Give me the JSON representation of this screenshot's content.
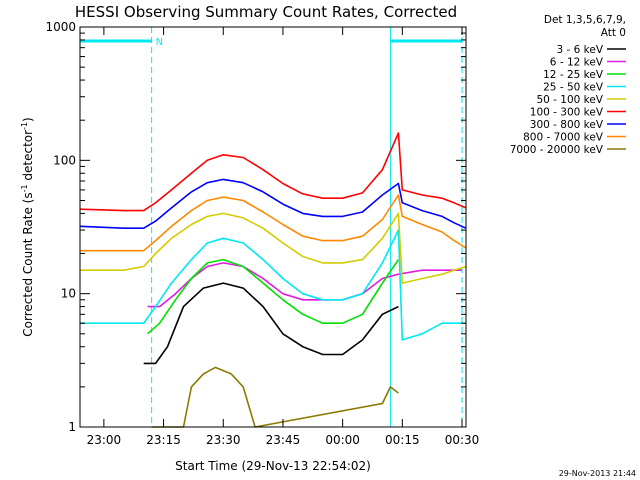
{
  "chart_data": {
    "type": "line",
    "title": "HESSI Observing Summary Count Rates, Corrected",
    "xlabel": "Start Time (29-Nov-13 22:54:02)",
    "ylabel_main": "Corrected Count Rate (s",
    "ylabel_sup1": "-1",
    "ylabel_mid": " detector",
    "ylabel_sup2": "-1",
    "ylabel_end": ")",
    "y_scale": "log",
    "ylim": [
      1,
      1000
    ],
    "xlim": [
      "22:54",
      "00:31"
    ],
    "x_ticks": [
      "23:00",
      "23:15",
      "23:30",
      "23:45",
      "00:00",
      "00:15",
      "00:30"
    ],
    "y_ticks": [
      "1",
      "10",
      "100",
      "1000"
    ],
    "grid": false,
    "legend": {
      "placement": "right",
      "header_line1": "Det 1,3,5,6,7,9,",
      "header_line2": "Att 0",
      "entries": [
        {
          "label": "3 - 6 keV",
          "color": "#000000"
        },
        {
          "label": "6 - 12 keV",
          "color": "#e01be0"
        },
        {
          "label": "12 - 25 keV",
          "color": "#00e000"
        },
        {
          "label": "25 - 50 keV",
          "color": "#00e8f0"
        },
        {
          "label": "50 - 100 keV",
          "color": "#d4cc00"
        },
        {
          "label": "100 - 300 keV",
          "color": "#ff0000"
        },
        {
          "label": "300 - 800 keV",
          "color": "#0000ff"
        },
        {
          "label": "800 - 7000 keV",
          "color": "#ff8800"
        },
        {
          "label": "7000 - 20000 keV",
          "color": "#8a7a00"
        }
      ]
    },
    "annotations": {
      "n_marker": "N",
      "night_periods": [
        [
          "22:54",
          "23:12"
        ],
        [
          "00:12",
          "00:30"
        ]
      ],
      "night_color": "#00e8f0"
    },
    "series": [
      {
        "name": "3 - 6 keV",
        "color": "#000000",
        "x": [
          "23:10",
          "23:13",
          "23:16",
          "23:20",
          "23:25",
          "23:30",
          "23:35",
          "23:40",
          "23:45",
          "23:50",
          "23:55",
          "00:00",
          "00:05",
          "00:10",
          "00:14"
        ],
        "y": [
          3,
          3,
          4,
          8,
          11,
          12,
          11,
          8,
          5,
          4,
          3.5,
          3.5,
          4.5,
          7,
          8
        ]
      },
      {
        "name": "6 - 12 keV",
        "color": "#e01be0",
        "x": [
          "23:11",
          "23:14",
          "23:18",
          "23:22",
          "23:26",
          "23:30",
          "23:35",
          "23:40",
          "23:45",
          "23:50",
          "23:55",
          "00:00",
          "00:05",
          "00:10",
          "00:14",
          "00:20",
          "00:30"
        ],
        "y": [
          8,
          8,
          10,
          13,
          16,
          17,
          16,
          13,
          10,
          9,
          9,
          9,
          10,
          13,
          14,
          15,
          15
        ]
      },
      {
        "name": "12 - 25 keV",
        "color": "#00e000",
        "x": [
          "23:11",
          "23:14",
          "23:18",
          "23:22",
          "23:26",
          "23:30",
          "23:35",
          "23:40",
          "23:45",
          "23:50",
          "23:55",
          "00:00",
          "00:05",
          "00:10",
          "00:14"
        ],
        "y": [
          5,
          6,
          9,
          13,
          17,
          18,
          16,
          12,
          9,
          7,
          6,
          6,
          7,
          12,
          18
        ]
      },
      {
        "name": "25 - 50 keV",
        "color": "#00e8f0",
        "x": [
          "22:54",
          "23:05",
          "23:10",
          "23:13",
          "23:17",
          "23:22",
          "23:26",
          "23:30",
          "23:35",
          "23:40",
          "23:45",
          "23:50",
          "23:55",
          "00:00",
          "00:05",
          "00:10",
          "00:14",
          "00:15",
          "00:20",
          "00:25",
          "00:28",
          "00:31"
        ],
        "y": [
          6,
          6,
          6,
          8,
          12,
          18,
          24,
          26,
          24,
          18,
          13,
          10,
          9,
          9,
          10,
          17,
          30,
          4.5,
          5,
          6,
          6,
          6
        ]
      },
      {
        "name": "50 - 100 keV",
        "color": "#d4cc00",
        "x": [
          "22:54",
          "23:05",
          "23:10",
          "23:13",
          "23:17",
          "23:22",
          "23:26",
          "23:30",
          "23:35",
          "23:40",
          "23:45",
          "23:50",
          "23:55",
          "00:00",
          "00:05",
          "00:10",
          "00:14",
          "00:15",
          "00:20",
          "00:25",
          "00:28",
          "00:31"
        ],
        "y": [
          15,
          15,
          16,
          20,
          26,
          33,
          38,
          40,
          37,
          31,
          24,
          19,
          17,
          17,
          18,
          26,
          40,
          12,
          13,
          14,
          15,
          16
        ]
      },
      {
        "name": "100 - 300 keV",
        "color": "#ff0000",
        "x": [
          "22:54",
          "23:05",
          "23:10",
          "23:13",
          "23:17",
          "23:22",
          "23:26",
          "23:30",
          "23:35",
          "23:40",
          "23:45",
          "23:50",
          "23:55",
          "00:00",
          "00:05",
          "00:10",
          "00:14",
          "00:15",
          "00:20",
          "00:25",
          "00:28",
          "00:31"
        ],
        "y": [
          43,
          42,
          42,
          48,
          60,
          80,
          100,
          110,
          105,
          85,
          67,
          56,
          52,
          52,
          57,
          85,
          160,
          60,
          55,
          52,
          48,
          44
        ]
      },
      {
        "name": "300 - 800 keV",
        "color": "#0000ff",
        "x": [
          "22:54",
          "23:05",
          "23:10",
          "23:13",
          "23:17",
          "23:22",
          "23:26",
          "23:30",
          "23:35",
          "23:40",
          "23:45",
          "23:50",
          "23:55",
          "00:00",
          "00:05",
          "00:10",
          "00:14",
          "00:15",
          "00:20",
          "00:25",
          "00:28",
          "00:31"
        ],
        "y": [
          32,
          31,
          31,
          35,
          44,
          58,
          68,
          72,
          68,
          58,
          47,
          40,
          38,
          38,
          41,
          55,
          67,
          48,
          42,
          38,
          34,
          31
        ]
      },
      {
        "name": "800 - 7000 keV",
        "color": "#ff8800",
        "x": [
          "22:54",
          "23:05",
          "23:10",
          "23:13",
          "23:17",
          "23:22",
          "23:26",
          "23:30",
          "23:35",
          "23:40",
          "23:45",
          "23:50",
          "23:55",
          "00:00",
          "00:05",
          "00:10",
          "00:14",
          "00:15",
          "00:20",
          "00:25",
          "00:28",
          "00:31"
        ],
        "y": [
          21,
          21,
          21,
          25,
          32,
          42,
          50,
          53,
          50,
          41,
          33,
          27,
          25,
          25,
          27,
          36,
          55,
          38,
          33,
          29,
          25,
          22
        ]
      },
      {
        "name": "7000 - 20000 keV",
        "color": "#8a7a00",
        "x": [
          "23:12",
          "23:20",
          "23:22",
          "23:25",
          "23:28",
          "23:32",
          "23:35",
          "23:38",
          "00:10",
          "00:12",
          "00:14"
        ],
        "y": [
          1,
          1,
          2,
          2.5,
          2.8,
          2.5,
          2,
          1,
          1.5,
          2,
          1.8
        ]
      }
    ]
  },
  "timestamp": "29-Nov-2013 21:44"
}
